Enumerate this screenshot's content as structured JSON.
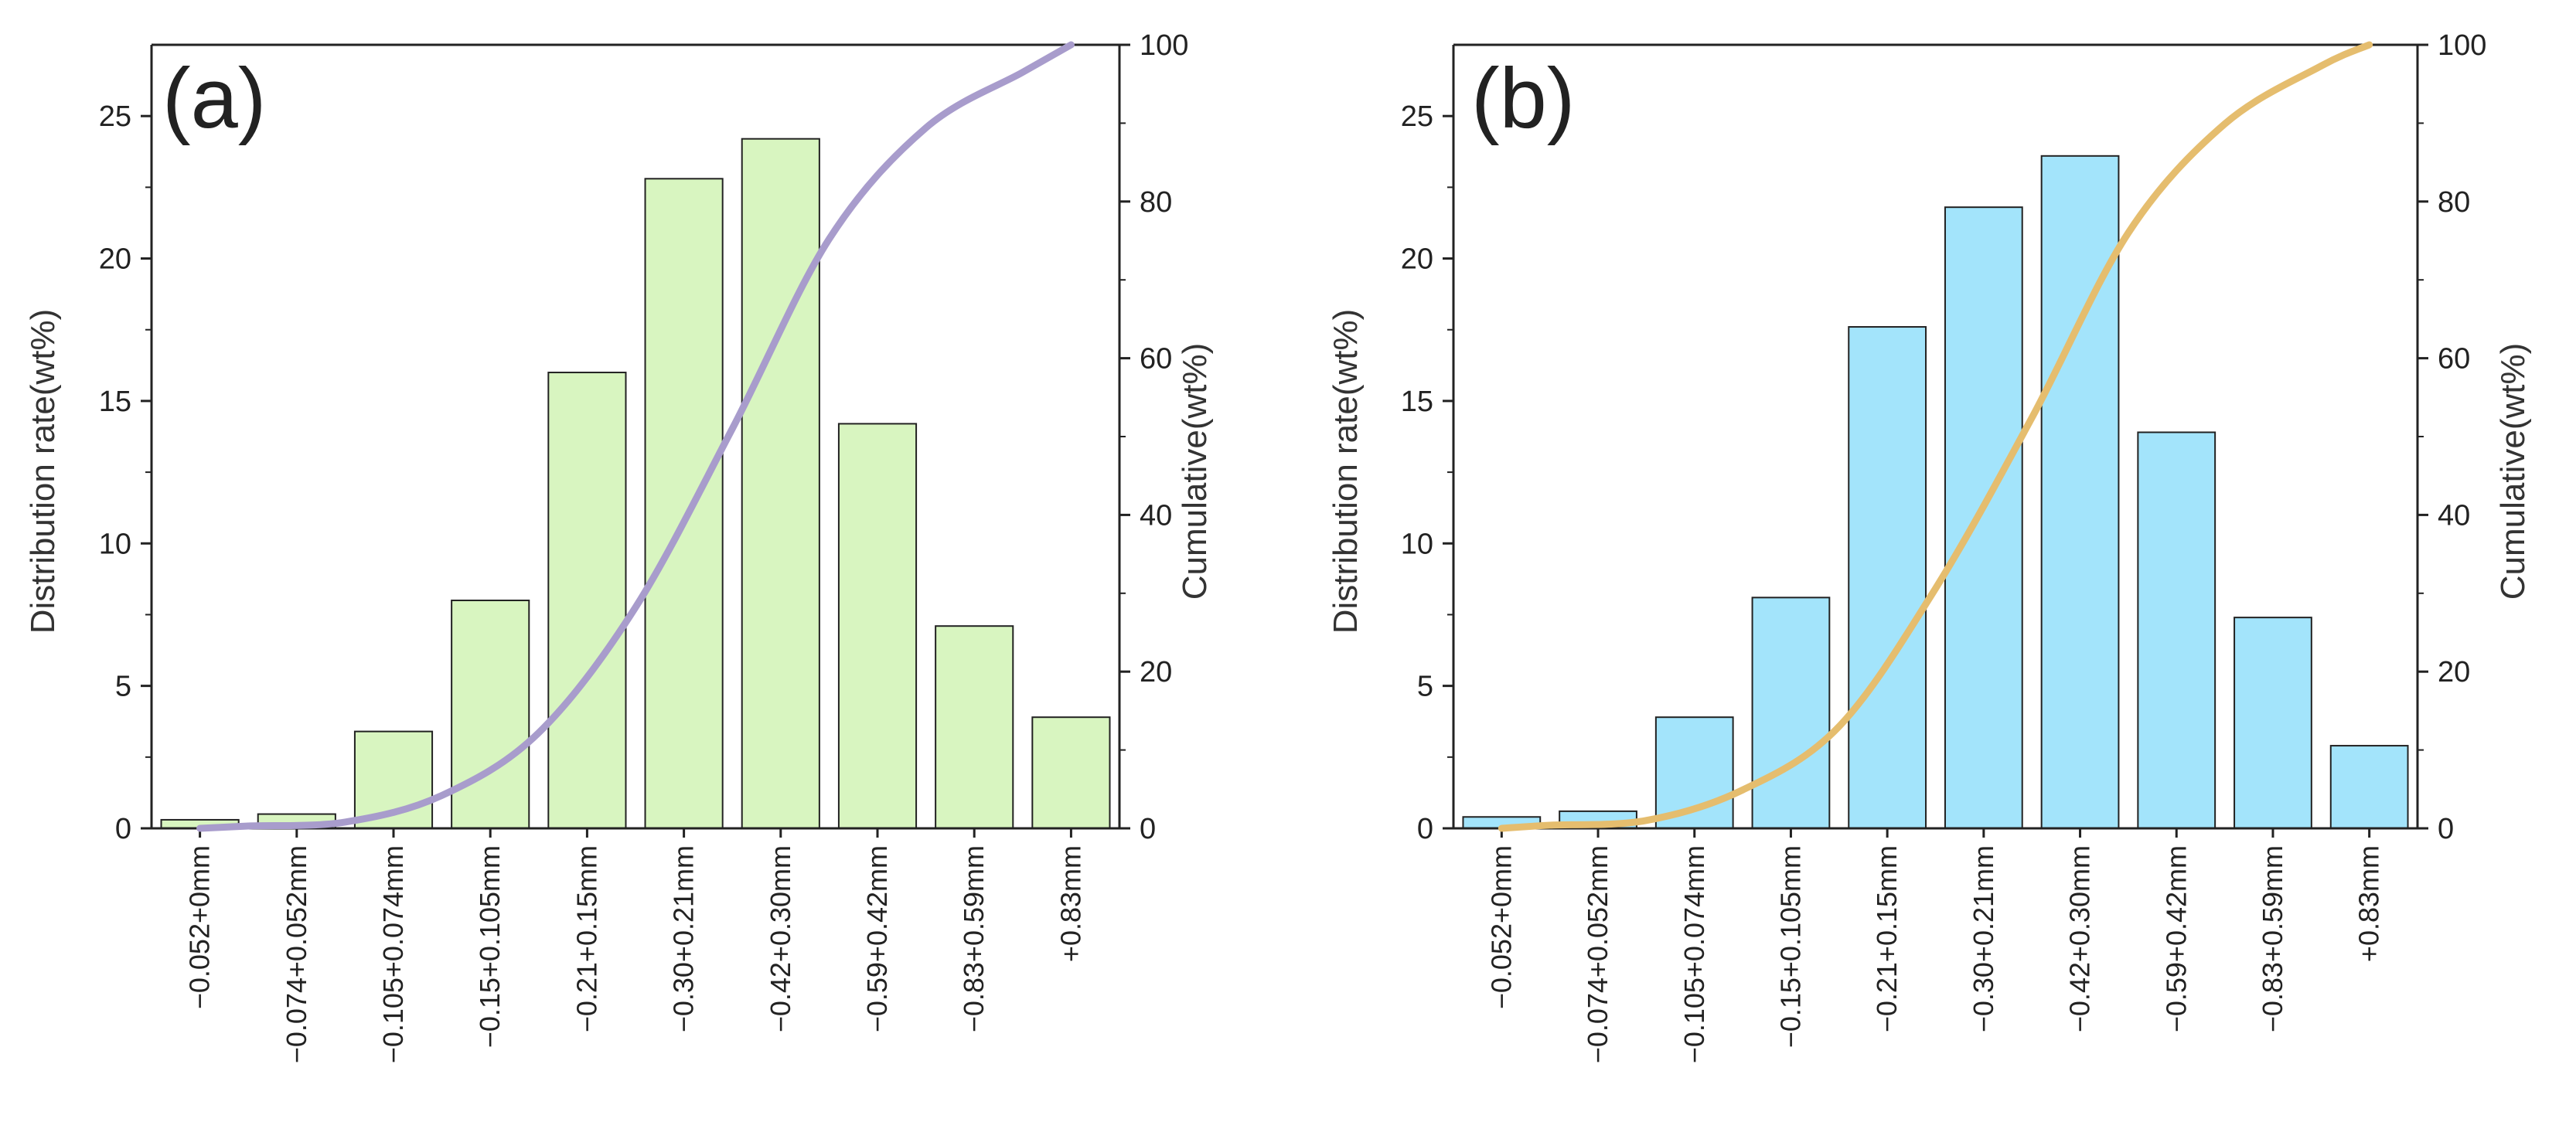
{
  "chart_data": [
    {
      "type": "bar",
      "panel_label": "(a)",
      "bar_color": "#d8f5c0",
      "line_color": "#a89ccc",
      "categories": [
        "−0.052+0mm",
        "−0.074+0.052mm",
        "−0.105+0.074mm",
        "−0.15+0.105mm",
        "−0.21+0.15mm",
        "−0.30+0.21mm",
        "−0.42+0.30mm",
        "−0.59+0.42mm",
        "−0.83+0.59mm",
        "+0.83mm"
      ],
      "values": [
        0.3,
        0.5,
        3.4,
        8.0,
        16.0,
        22.8,
        24.2,
        14.2,
        7.1,
        3.9
      ],
      "cumulative": [
        0.3,
        0.8,
        4.2,
        12.2,
        28.2,
        51.0,
        75.2,
        89.4,
        96.5,
        100
      ],
      "ylabel": "Distribution rate(wt%)",
      "y2label": "Cumulative(wt%)",
      "ylim": [
        0,
        27.5
      ],
      "y_ticks": [
        0,
        5,
        10,
        15,
        20,
        25
      ],
      "y2lim": [
        0,
        100
      ],
      "y2_ticks": [
        0,
        20,
        40,
        60,
        80,
        100
      ]
    },
    {
      "type": "bar",
      "panel_label": "(b)",
      "bar_color": "#a3e4fb",
      "line_color": "#e5bd6e",
      "categories": [
        "−0.052+0mm",
        "−0.074+0.052mm",
        "−0.105+0.074mm",
        "−0.15+0.105mm",
        "−0.21+0.15mm",
        "−0.30+0.21mm",
        "−0.42+0.30mm",
        "−0.59+0.42mm",
        "−0.83+0.59mm",
        "+0.83mm"
      ],
      "values": [
        0.4,
        0.6,
        3.9,
        8.1,
        17.6,
        21.8,
        23.6,
        13.9,
        7.4,
        2.9
      ],
      "cumulative": [
        0.4,
        1.0,
        4.9,
        13.0,
        30.6,
        52.4,
        76.0,
        89.9,
        97.3,
        100
      ],
      "ylabel": "Distribution rate(wt%)",
      "y2label": "Cumulative(wt%)",
      "ylim": [
        0,
        27.5
      ],
      "y_ticks": [
        0,
        5,
        10,
        15,
        20,
        25
      ],
      "y2lim": [
        0,
        100
      ],
      "y2_ticks": [
        0,
        20,
        40,
        60,
        80,
        100
      ]
    }
  ]
}
